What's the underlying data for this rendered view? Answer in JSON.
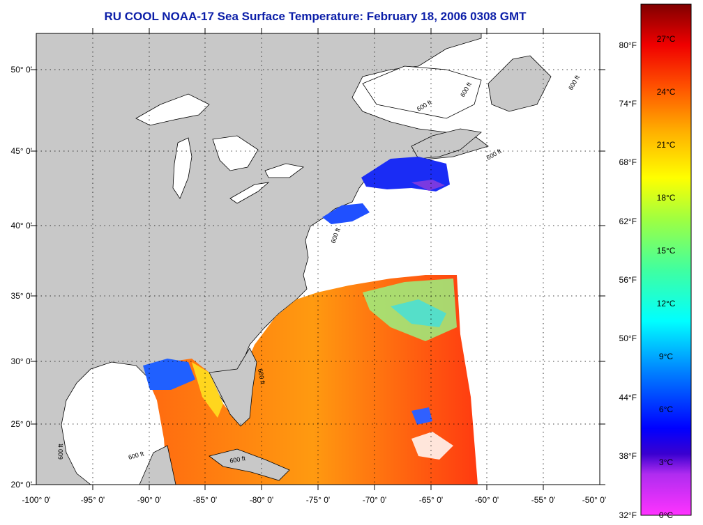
{
  "title": "RU COOL  NOAA-17  Sea Surface Temperature:  February 18, 2006 0308 GMT",
  "map": {
    "lat_labels": [
      "20° 0'",
      "25° 0'",
      "30° 0'",
      "35° 0'",
      "40° 0'",
      "45° 0'",
      "50° 0'"
    ],
    "lon_labels": [
      "-100° 0'",
      "-95° 0'",
      "-90° 0'",
      "-85° 0'",
      "-80° 0'",
      "-75° 0'",
      "-70° 0'",
      "-65° 0'",
      "-60° 0'",
      "-55° 0'",
      "-50° 0'"
    ],
    "contour_labels": [
      "600 ft",
      "600 ft",
      "600 ft",
      "600 ft",
      "600 ft",
      "600 ft",
      "600 ft",
      "600 ft",
      "600 ft"
    ],
    "colors": {
      "land": "#c8c8c8",
      "ocean_no_data": "#ffffff",
      "grid": "#000000"
    }
  },
  "colorbar": {
    "fahrenheit_labels": [
      "80°F",
      "74°F",
      "68°F",
      "62°F",
      "56°F",
      "50°F",
      "44°F",
      "38°F",
      "32°F"
    ],
    "celsius_labels": [
      "27°C",
      "24°C",
      "21°C",
      "18°C",
      "15°C",
      "12°C",
      "9°C",
      "6°C",
      "3°C",
      "0°C"
    ],
    "range_c": [
      0,
      29
    ]
  }
}
